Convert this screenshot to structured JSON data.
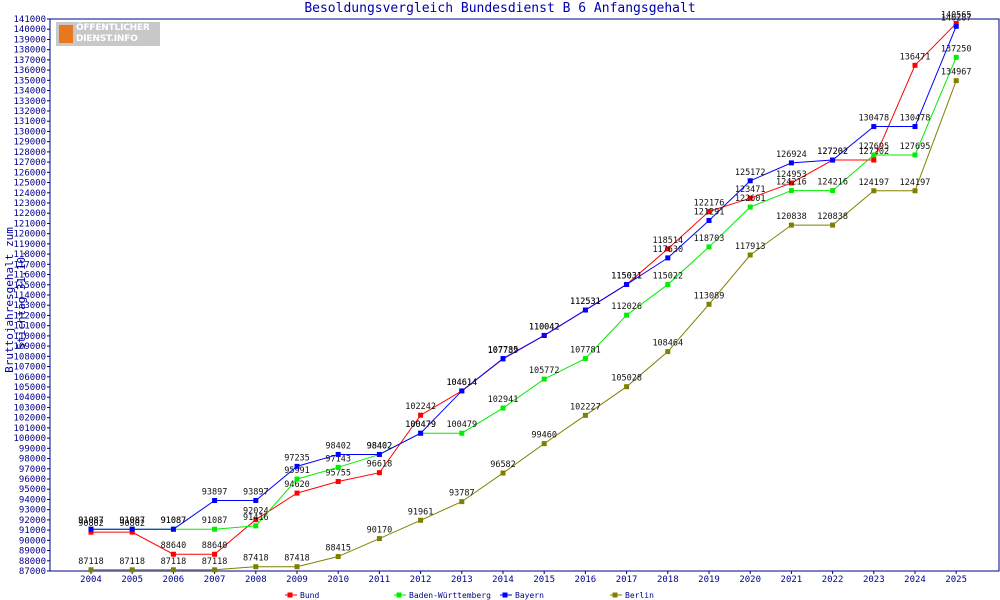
{
  "title": "Besoldungsvergleich Bundesdienst B 6 Anfangsgehalt",
  "logo": {
    "line1": "ÖFFENTLICHER",
    "line2": "DIENST.INFO"
  },
  "chart_data": {
    "type": "line",
    "title": "Besoldungsvergleich Bundesdienst B 6 Anfangsgehalt",
    "xlabel": "",
    "ylabel": "Bruttojahresgehalt zum Stichtag 31.10.",
    "x": [
      2004,
      2005,
      2006,
      2007,
      2008,
      2009,
      2010,
      2011,
      2012,
      2013,
      2014,
      2015,
      2016,
      2017,
      2018,
      2019,
      2020,
      2021,
      2022,
      2023,
      2024,
      2025
    ],
    "ylim": [
      87000,
      141000
    ],
    "ytick_step": 1000,
    "grid": false,
    "legend_position": "bottom",
    "series": [
      {
        "name": "Bund",
        "color": "#ff0000",
        "values": [
          90802,
          90802,
          88640,
          88640,
          92024,
          94620,
          95755,
          96618,
          102242,
          104614,
          107739,
          110042,
          112531,
          115031,
          118514,
          122176,
          123471,
          124953,
          127202,
          127202,
          136471,
          140565
        ]
      },
      {
        "name": "Baden-Württemberg",
        "color": "#00ee00",
        "values": [
          91087,
          91087,
          91087,
          91087,
          91416,
          95991,
          97143,
          98402,
          100479,
          100479,
          102941,
          105772,
          107781,
          112026,
          115022,
          118703,
          122601,
          124216,
          124216,
          127695,
          127695,
          137250
        ]
      },
      {
        "name": "Bayern",
        "color": "#0000ff",
        "values": [
          91087,
          91087,
          91087,
          93897,
          93897,
          97235,
          98402,
          98402,
          100479,
          104614,
          107785,
          110042,
          112531,
          115031,
          117630,
          121291,
          125172,
          126924,
          127202,
          130478,
          130478,
          140287
        ]
      },
      {
        "name": "Berlin",
        "color": "#808000",
        "values": [
          87118,
          87118,
          87118,
          87118,
          87418,
          87418,
          88415,
          90170,
          91961,
          93787,
          96582,
          99460,
          102227,
          105028,
          108464,
          113089,
          117913,
          120838,
          120838,
          124197,
          124197,
          134967
        ]
      }
    ]
  }
}
